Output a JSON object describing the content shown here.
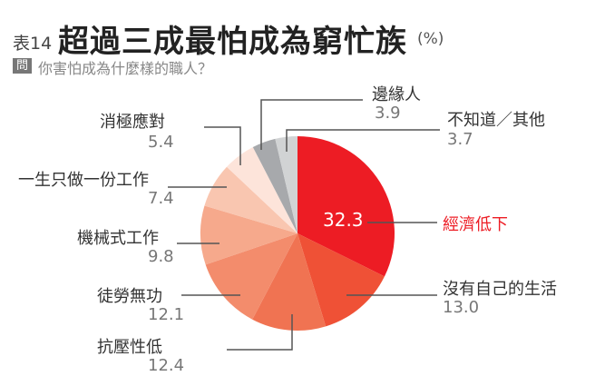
{
  "header": {
    "table_no": "表14",
    "title": "超過三成最怕成為窮忙族",
    "unit": "(%)",
    "question_badge": "問",
    "question": "你害怕成為什麼樣的職人？"
  },
  "chart_data": {
    "type": "pie",
    "start": "12 o'clock, clockwise",
    "slices": [
      {
        "label": "經濟低下",
        "value": 32.3,
        "color": "#ed1c24"
      },
      {
        "label": "沒有自己的生活",
        "value": 13.0,
        "color": "#ef5136"
      },
      {
        "label": "抗壓性低",
        "value": 12.4,
        "color": "#f07352"
      },
      {
        "label": "徒勞無功",
        "value": 12.1,
        "color": "#f38c6c"
      },
      {
        "label": "機械式工作",
        "value": 9.8,
        "color": "#f6a98c"
      },
      {
        "label": "一生只做一份工作",
        "value": 7.4,
        "color": "#f9c6b0"
      },
      {
        "label": "消極應對",
        "value": 5.4,
        "color": "#fde4da"
      },
      {
        "label": "邊緣人",
        "value": 3.9,
        "color": "#a7a9ac"
      },
      {
        "label": "不知道／其他",
        "value": 3.7,
        "color": "#d1d3d4"
      }
    ],
    "highlight_color": "#ed1c24"
  }
}
